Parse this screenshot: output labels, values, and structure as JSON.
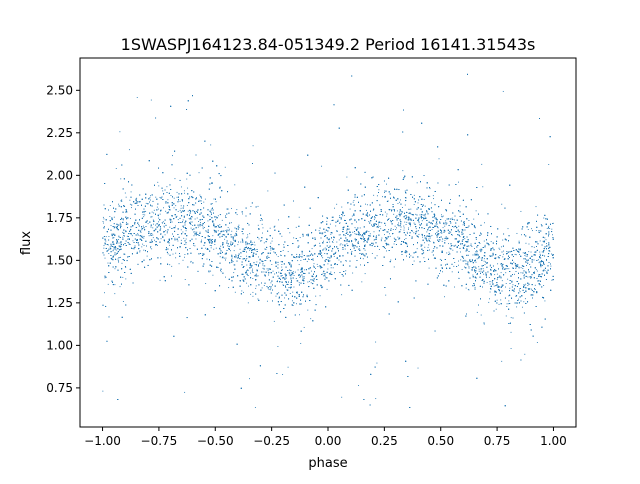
{
  "chart_data": {
    "type": "scatter",
    "title": "1SWASPJ164123.84-051349.2 Period 16141.31543s",
    "xlabel": "phase",
    "ylabel": "flux",
    "xlim": [
      -1.1,
      1.1
    ],
    "ylim": [
      0.52,
      2.69
    ],
    "xticks": [
      -1.0,
      -0.75,
      -0.5,
      -0.25,
      0.0,
      0.25,
      0.5,
      0.75,
      1.0
    ],
    "xtick_labels": [
      "−1.00",
      "−0.75",
      "−0.50",
      "−0.25",
      "0.00",
      "0.25",
      "0.50",
      "0.75",
      "1.00"
    ],
    "yticks": [
      0.75,
      1.0,
      1.25,
      1.5,
      1.75,
      2.0,
      2.25,
      2.5
    ],
    "ytick_labels": [
      "0.75",
      "1.00",
      "1.25",
      "1.50",
      "1.75",
      "2.00",
      "2.25",
      "2.50"
    ],
    "grid": false,
    "marker_color": "#1f77b4",
    "series": [
      {
        "phase_range": [
          -1.0,
          1.0
        ],
        "approx_points": 12000,
        "profile": {
          "phase": [
            -1.0,
            -0.9,
            -0.8,
            -0.7,
            -0.6,
            -0.5,
            -0.4,
            -0.3,
            -0.2,
            -0.1,
            0.0,
            0.1,
            0.2,
            0.3,
            0.4,
            0.5,
            0.6,
            0.7,
            0.8,
            0.9,
            1.0
          ],
          "mean_flux": [
            1.59,
            1.65,
            1.7,
            1.73,
            1.72,
            1.66,
            1.58,
            1.49,
            1.42,
            1.44,
            1.57,
            1.65,
            1.7,
            1.73,
            1.72,
            1.66,
            1.58,
            1.49,
            1.42,
            1.44,
            1.57
          ]
        },
        "scatter_sigma": 0.11,
        "outlier_range": [
          0.6,
          2.6
        ]
      }
    ]
  }
}
